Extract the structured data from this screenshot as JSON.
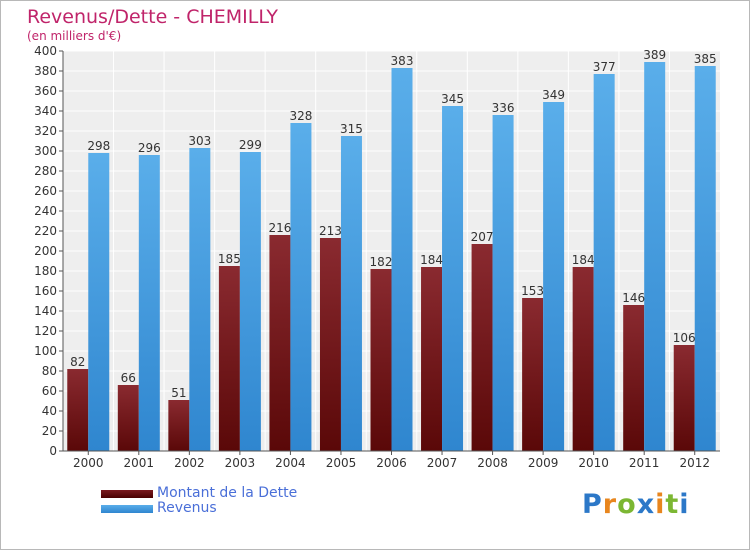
{
  "chart_data": {
    "type": "bar",
    "title": "Revenus/Dette - CHEMILLY",
    "subtitle": "(en milliers d'€)",
    "categories": [
      "2000",
      "2001",
      "2002",
      "2003",
      "2004",
      "2005",
      "2006",
      "2007",
      "2008",
      "2009",
      "2010",
      "2011",
      "2012"
    ],
    "series": [
      {
        "name": "Montant de la Dette",
        "color": "#7a1a1f",
        "values": [
          82,
          66,
          51,
          185,
          216,
          213,
          182,
          184,
          207,
          153,
          184,
          146,
          106
        ]
      },
      {
        "name": "Revenus",
        "color": "#4da3e3",
        "values": [
          298,
          296,
          303,
          299,
          328,
          315,
          383,
          345,
          336,
          349,
          377,
          389,
          385
        ]
      }
    ],
    "ylim": [
      0,
      400
    ],
    "ytick_step": 20,
    "grid": true,
    "legend_position": "bottom-left"
  },
  "brand": {
    "letters": [
      {
        "ch": "P",
        "color": "#2c78c8"
      },
      {
        "ch": "r",
        "color": "#e8861e"
      },
      {
        "ch": "o",
        "color": "#7cb733"
      },
      {
        "ch": "x",
        "color": "#2c78c8"
      },
      {
        "ch": "i",
        "color": "#e8861e"
      },
      {
        "ch": "t",
        "color": "#7cb733"
      },
      {
        "ch": "i",
        "color": "#2c78c8"
      }
    ]
  }
}
